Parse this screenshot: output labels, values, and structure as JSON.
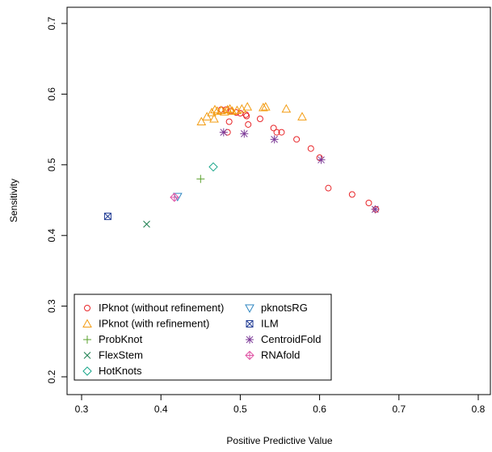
{
  "chart_data": {
    "type": "scatter",
    "title": "",
    "xlabel": "Positive Predictive Value",
    "ylabel": "Sensitivity",
    "xlim": [
      0.3,
      0.8
    ],
    "ylim": [
      0.2,
      0.7
    ],
    "x_ticks": [
      "0.3",
      "0.4",
      "0.5",
      "0.6",
      "0.7",
      "0.8"
    ],
    "y_ticks": [
      "0.2",
      "0.3",
      "0.4",
      "0.5",
      "0.6",
      "0.7"
    ],
    "grid": false,
    "legend_position": "bottom-left",
    "series": [
      {
        "name": "IPknot (without refinement)",
        "marker": "circle",
        "color": "#e8262a",
        "points": [
          [
            0.476,
            0.578
          ],
          [
            0.482,
            0.578
          ],
          [
            0.488,
            0.576
          ],
          [
            0.495,
            0.574
          ],
          [
            0.5,
            0.573
          ],
          [
            0.507,
            0.571
          ],
          [
            0.508,
            0.569
          ],
          [
            0.51,
            0.557
          ],
          [
            0.525,
            0.565
          ],
          [
            0.486,
            0.561
          ],
          [
            0.484,
            0.546
          ],
          [
            0.542,
            0.552
          ],
          [
            0.546,
            0.546
          ],
          [
            0.552,
            0.546
          ],
          [
            0.571,
            0.536
          ],
          [
            0.589,
            0.523
          ],
          [
            0.6,
            0.51
          ],
          [
            0.611,
            0.467
          ],
          [
            0.641,
            0.458
          ],
          [
            0.662,
            0.446
          ],
          [
            0.671,
            0.437
          ]
        ]
      },
      {
        "name": "IPknot (with refinement)",
        "marker": "triangle-up",
        "color": "#f39c12",
        "points": [
          [
            0.451,
            0.561
          ],
          [
            0.458,
            0.568
          ],
          [
            0.464,
            0.574
          ],
          [
            0.467,
            0.565
          ],
          [
            0.471,
            0.576
          ],
          [
            0.476,
            0.577
          ],
          [
            0.48,
            0.575
          ],
          [
            0.484,
            0.578
          ],
          [
            0.49,
            0.576
          ],
          [
            0.496,
            0.577
          ],
          [
            0.502,
            0.579
          ],
          [
            0.509,
            0.582
          ],
          [
            0.529,
            0.581
          ],
          [
            0.532,
            0.582
          ],
          [
            0.558,
            0.579
          ],
          [
            0.578,
            0.568
          ],
          [
            0.468,
            0.578
          ],
          [
            0.487,
            0.579
          ]
        ]
      },
      {
        "name": "ProbKnot",
        "marker": "plus",
        "color": "#5aa02c",
        "points": [
          [
            0.45,
            0.48
          ]
        ]
      },
      {
        "name": "FlexStem",
        "marker": "x",
        "color": "#1b7e4e",
        "points": [
          [
            0.382,
            0.416
          ]
        ]
      },
      {
        "name": "HotKnots",
        "marker": "diamond",
        "color": "#17a589",
        "points": [
          [
            0.466,
            0.497
          ]
        ]
      },
      {
        "name": "pknotsRG",
        "marker": "triangle-down",
        "color": "#2e86c1",
        "points": [
          [
            0.421,
            0.455
          ]
        ]
      },
      {
        "name": "ILM",
        "marker": "square-x",
        "color": "#1f3a93",
        "points": [
          [
            0.333,
            0.427
          ]
        ]
      },
      {
        "name": "CentroidFold",
        "marker": "asterisk",
        "color": "#7d3c98",
        "points": [
          [
            0.479,
            0.546
          ],
          [
            0.505,
            0.544
          ],
          [
            0.543,
            0.536
          ],
          [
            0.602,
            0.507
          ],
          [
            0.67,
            0.437
          ]
        ]
      },
      {
        "name": "RNAfold",
        "marker": "diamond-plus",
        "color": "#e056a6",
        "points": [
          [
            0.417,
            0.454
          ]
        ]
      }
    ]
  }
}
